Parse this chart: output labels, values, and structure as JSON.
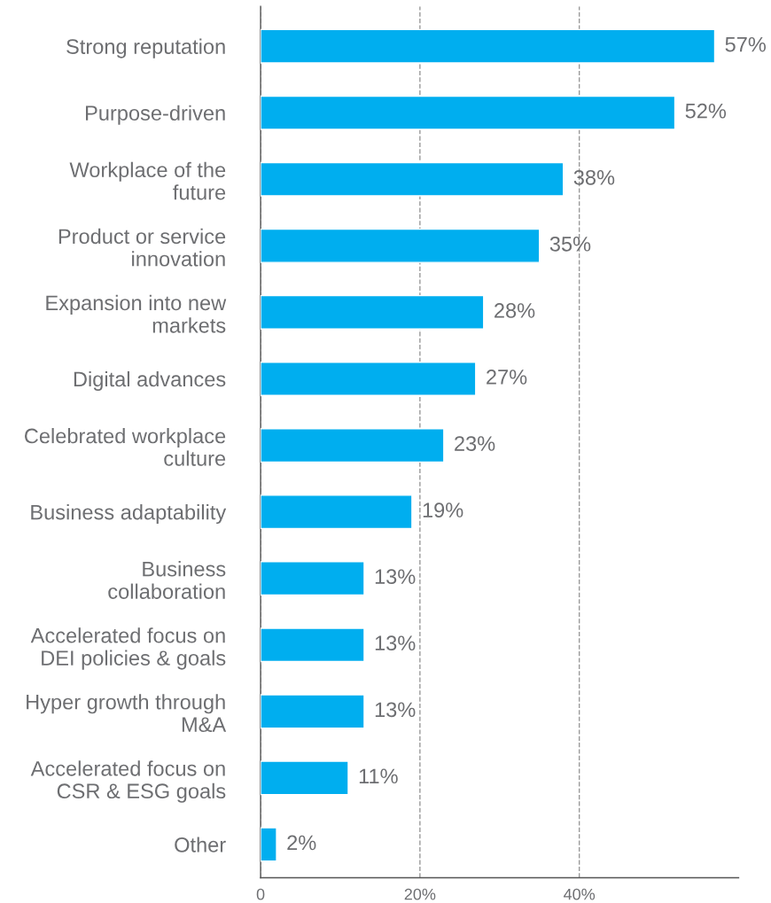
{
  "chart_data": {
    "type": "bar",
    "orientation": "horizontal",
    "categories": [
      "Strong reputation",
      "Purpose-driven",
      "Workplace of the future",
      "Product or service innovation",
      "Expansion into new markets",
      "Digital advances",
      "Celebrated workplace culture",
      "Business adaptability",
      "Business collaboration",
      "Accelerated focus on DEI policies & goals",
      "Hyper growth through M&A",
      "Accelerated focus on CSR & ESG goals",
      "Other"
    ],
    "values": [
      57,
      52,
      38,
      35,
      28,
      27,
      23,
      19,
      13,
      13,
      13,
      11,
      2
    ],
    "value_labels": [
      "57%",
      "52%",
      "38%",
      "35%",
      "28%",
      "27%",
      "23%",
      "19%",
      "13%",
      "13%",
      "13%",
      "11%",
      "2%"
    ],
    "color": "#00aeef",
    "xlim": [
      0,
      60
    ],
    "xticks": [
      0,
      {
        "value": 20,
        "label": "20%"
      },
      {
        "value": 40,
        "label": "40%"
      }
    ],
    "grid": "x"
  }
}
